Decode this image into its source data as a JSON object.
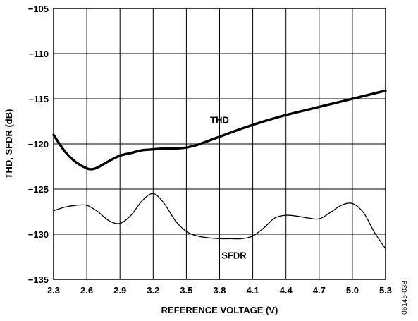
{
  "chart_data": {
    "type": "line",
    "title": "",
    "xlabel": "REFERENCE VOLTAGE (V)",
    "ylabel": "THD, SFDR (dB)",
    "xlim": [
      2.3,
      5.3
    ],
    "ylim": [
      -135,
      -105
    ],
    "x_ticks": [
      2.3,
      2.6,
      2.9,
      3.2,
      3.5,
      3.8,
      4.1,
      4.4,
      4.7,
      5.0,
      5.3
    ],
    "x_tick_labels": [
      "2.3",
      "2.6",
      "2.9",
      "3.2",
      "3.5",
      "3.8",
      "4.1",
      "4.4",
      "4.7",
      "5.0",
      "5.3"
    ],
    "y_ticks": [
      -135,
      -130,
      -125,
      -120,
      -115,
      -110,
      -105
    ],
    "y_tick_labels": [
      "−135",
      "−130",
      "−125",
      "−120",
      "−115",
      "−110",
      "−105"
    ],
    "grid": true,
    "legend": "none",
    "series": [
      {
        "name": "THD",
        "color": "#000000",
        "line_style": "thick",
        "label_at": [
          3.8,
          -117.3
        ],
        "x": [
          2.3,
          2.4,
          2.5,
          2.6,
          2.65,
          2.7,
          2.8,
          2.9,
          3.0,
          3.1,
          3.2,
          3.3,
          3.4,
          3.5,
          3.6,
          3.8,
          4.0,
          4.2,
          4.4,
          4.6,
          4.8,
          5.0,
          5.2,
          5.3
        ],
        "values": [
          -119.0,
          -120.8,
          -122.0,
          -122.7,
          -122.8,
          -122.6,
          -121.9,
          -121.3,
          -121.0,
          -120.7,
          -120.6,
          -120.5,
          -120.5,
          -120.4,
          -120.1,
          -119.2,
          -118.3,
          -117.5,
          -116.8,
          -116.2,
          -115.6,
          -115.0,
          -114.4,
          -114.1
        ]
      },
      {
        "name": "SFDR",
        "color": "#000000",
        "line_style": "thin",
        "label_at": [
          3.93,
          -132.3
        ],
        "x": [
          2.3,
          2.4,
          2.5,
          2.6,
          2.7,
          2.8,
          2.9,
          3.0,
          3.1,
          3.2,
          3.3,
          3.4,
          3.5,
          3.6,
          3.7,
          3.8,
          3.9,
          4.0,
          4.1,
          4.2,
          4.3,
          4.4,
          4.5,
          4.6,
          4.7,
          4.8,
          4.9,
          5.0,
          5.1,
          5.2,
          5.3
        ],
        "values": [
          -127.4,
          -127.0,
          -126.8,
          -126.8,
          -127.5,
          -128.5,
          -128.8,
          -127.9,
          -126.3,
          -125.5,
          -126.6,
          -128.5,
          -129.7,
          -130.2,
          -130.4,
          -130.5,
          -130.5,
          -130.5,
          -130.2,
          -129.3,
          -128.2,
          -127.9,
          -128.0,
          -128.2,
          -128.3,
          -127.6,
          -126.8,
          -126.6,
          -127.6,
          -129.8,
          -131.6
        ]
      }
    ]
  },
  "figure_id": "06146-038"
}
